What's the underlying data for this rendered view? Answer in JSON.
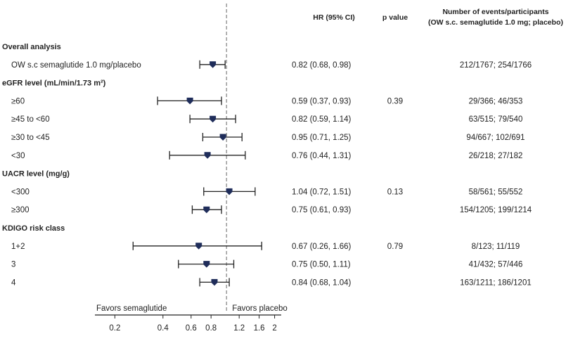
{
  "chart_data": {
    "type": "forest",
    "headers": {
      "hr": "HR (95% CI)",
      "p": "p value",
      "events_line1": "Number of events/participants",
      "events_line2": "(OW s.c. semaglutide 1.0 mg; placebo)"
    },
    "x_scale": "log",
    "xlim": [
      0.15,
      2.2
    ],
    "reference_line": 1.0,
    "xticks": [
      {
        "v": 0.2,
        "t": "0.2"
      },
      {
        "v": 0.4,
        "t": "0.4"
      },
      {
        "v": 0.6,
        "t": "0.6"
      },
      {
        "v": 0.8,
        "t": "0.8"
      },
      {
        "v": 1.2,
        "t": "1.2"
      },
      {
        "v": 1.6,
        "t": "1.6"
      },
      {
        "v": 2.0,
        "t": "2"
      }
    ],
    "favors_left": "Favors semaglutide",
    "favors_right": "Favors placebo",
    "rows": [
      {
        "kind": "section",
        "label": "Overall analysis"
      },
      {
        "kind": "item",
        "label": "OW s.c semaglutide 1.0 mg/placebo",
        "hr": 0.82,
        "lo": 0.68,
        "hi": 0.98,
        "ci": "0.82 (0.68, 0.98)",
        "p": "",
        "events": "212/1767; 254/1766"
      },
      {
        "kind": "section",
        "label": "eGFR level (mL/min/1.73 m²)"
      },
      {
        "kind": "item",
        "label": "≥60",
        "hr": 0.59,
        "lo": 0.37,
        "hi": 0.93,
        "ci": "0.59 (0.37, 0.93)",
        "p": "0.39",
        "events": "29/366; 46/353"
      },
      {
        "kind": "item",
        "label": "≥45 to <60",
        "hr": 0.82,
        "lo": 0.59,
        "hi": 1.14,
        "ci": "0.82 (0.59, 1.14)",
        "p": "",
        "events": "63/515; 79/540"
      },
      {
        "kind": "item",
        "label": "≥30 to <45",
        "hr": 0.95,
        "lo": 0.71,
        "hi": 1.25,
        "ci": "0.95 (0.71, 1.25)",
        "p": "",
        "events": "94/667; 102/691"
      },
      {
        "kind": "item",
        "label": "<30",
        "hr": 0.76,
        "lo": 0.44,
        "hi": 1.31,
        "ci": "0.76 (0.44, 1.31)",
        "p": "",
        "events": "26/218; 27/182"
      },
      {
        "kind": "section",
        "label": "UACR level (mg/g)"
      },
      {
        "kind": "item",
        "label": "<300",
        "hr": 1.04,
        "lo": 0.72,
        "hi": 1.51,
        "ci": "1.04 (0.72, 1.51)",
        "p": "0.13",
        "events": "58/561; 55/552"
      },
      {
        "kind": "item",
        "label": "≥300",
        "hr": 0.75,
        "lo": 0.61,
        "hi": 0.93,
        "ci": "0.75 (0.61, 0.93)",
        "p": "",
        "events": "154/1205; 199/1214"
      },
      {
        "kind": "section",
        "label": "KDIGO risk class"
      },
      {
        "kind": "item",
        "label": "1+2",
        "hr": 0.67,
        "lo": 0.26,
        "hi": 1.66,
        "ci": "0.67 (0.26, 1.66)",
        "p": "0.79",
        "events": "8/123; 11/119"
      },
      {
        "kind": "item",
        "label": "3",
        "hr": 0.75,
        "lo": 0.5,
        "hi": 1.11,
        "ci": "0.75 (0.50, 1.11)",
        "p": "",
        "events": "41/432; 57/446"
      },
      {
        "kind": "item",
        "label": "4",
        "hr": 0.84,
        "lo": 0.68,
        "hi": 1.04,
        "ci": "0.84 (0.68, 1.04)",
        "p": "",
        "events": "163/1211; 186/1201"
      }
    ],
    "colors": {
      "marker": "#1f2d5a",
      "line": "#222222",
      "reference": "#888888"
    }
  }
}
